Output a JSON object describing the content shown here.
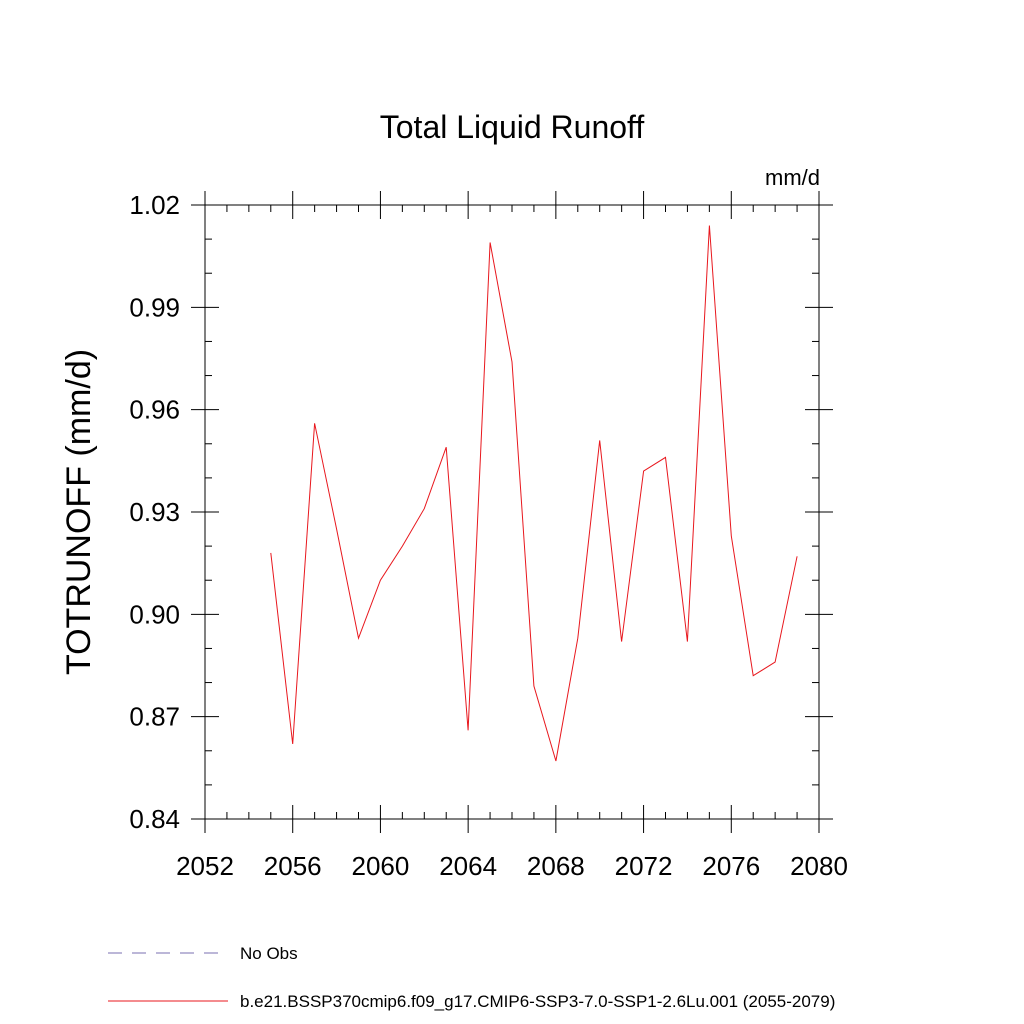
{
  "chart_data": {
    "type": "line",
    "title": "Total Liquid Runoff",
    "units_label": "mm/d",
    "ylabel": "TOTRUNOFF  (mm/d)",
    "xlabel": "",
    "xlim": [
      2052,
      2080
    ],
    "ylim": [
      0.84,
      1.02
    ],
    "x_ticks": [
      2052,
      2056,
      2060,
      2064,
      2068,
      2072,
      2076,
      2080
    ],
    "x_tick_labels": [
      "2052",
      "2056",
      "2060",
      "2064",
      "2068",
      "2072",
      "2076",
      "2080"
    ],
    "y_ticks": [
      0.84,
      0.87,
      0.9,
      0.93,
      0.96,
      0.99,
      1.02
    ],
    "y_tick_labels": [
      "0.84",
      "0.87",
      "0.90",
      "0.93",
      "0.96",
      "0.99",
      "1.02"
    ],
    "grid": false,
    "legend_position": "bottom-left, below plot",
    "legend": [
      {
        "label": "No Obs",
        "style": "dashed",
        "color": "#7a6fb0"
      },
      {
        "label": "b.e21.BSSP370cmip6.f09_g17.CMIP6-SSP3-7.0-SSP1-2.6Lu.001 (2055-2079)",
        "style": "solid",
        "color": "#e8171d"
      }
    ],
    "series": [
      {
        "name": "b.e21.BSSP370cmip6.f09_g17.CMIP6-SSP3-7.0-SSP1-2.6Lu.001 (2055-2079)",
        "color": "#e8171d",
        "x": [
          2055,
          2056,
          2057,
          2058,
          2059,
          2060,
          2061,
          2062,
          2063,
          2064,
          2065,
          2066,
          2067,
          2068,
          2069,
          2070,
          2071,
          2072,
          2073,
          2074,
          2075,
          2076,
          2077,
          2078,
          2079
        ],
        "y": [
          0.918,
          0.862,
          0.956,
          0.925,
          0.893,
          0.91,
          0.92,
          0.931,
          0.949,
          0.866,
          1.009,
          0.974,
          0.879,
          0.857,
          0.893,
          0.951,
          0.892,
          0.942,
          0.946,
          0.892,
          1.014,
          0.923,
          0.882,
          0.886,
          0.917
        ]
      }
    ]
  }
}
